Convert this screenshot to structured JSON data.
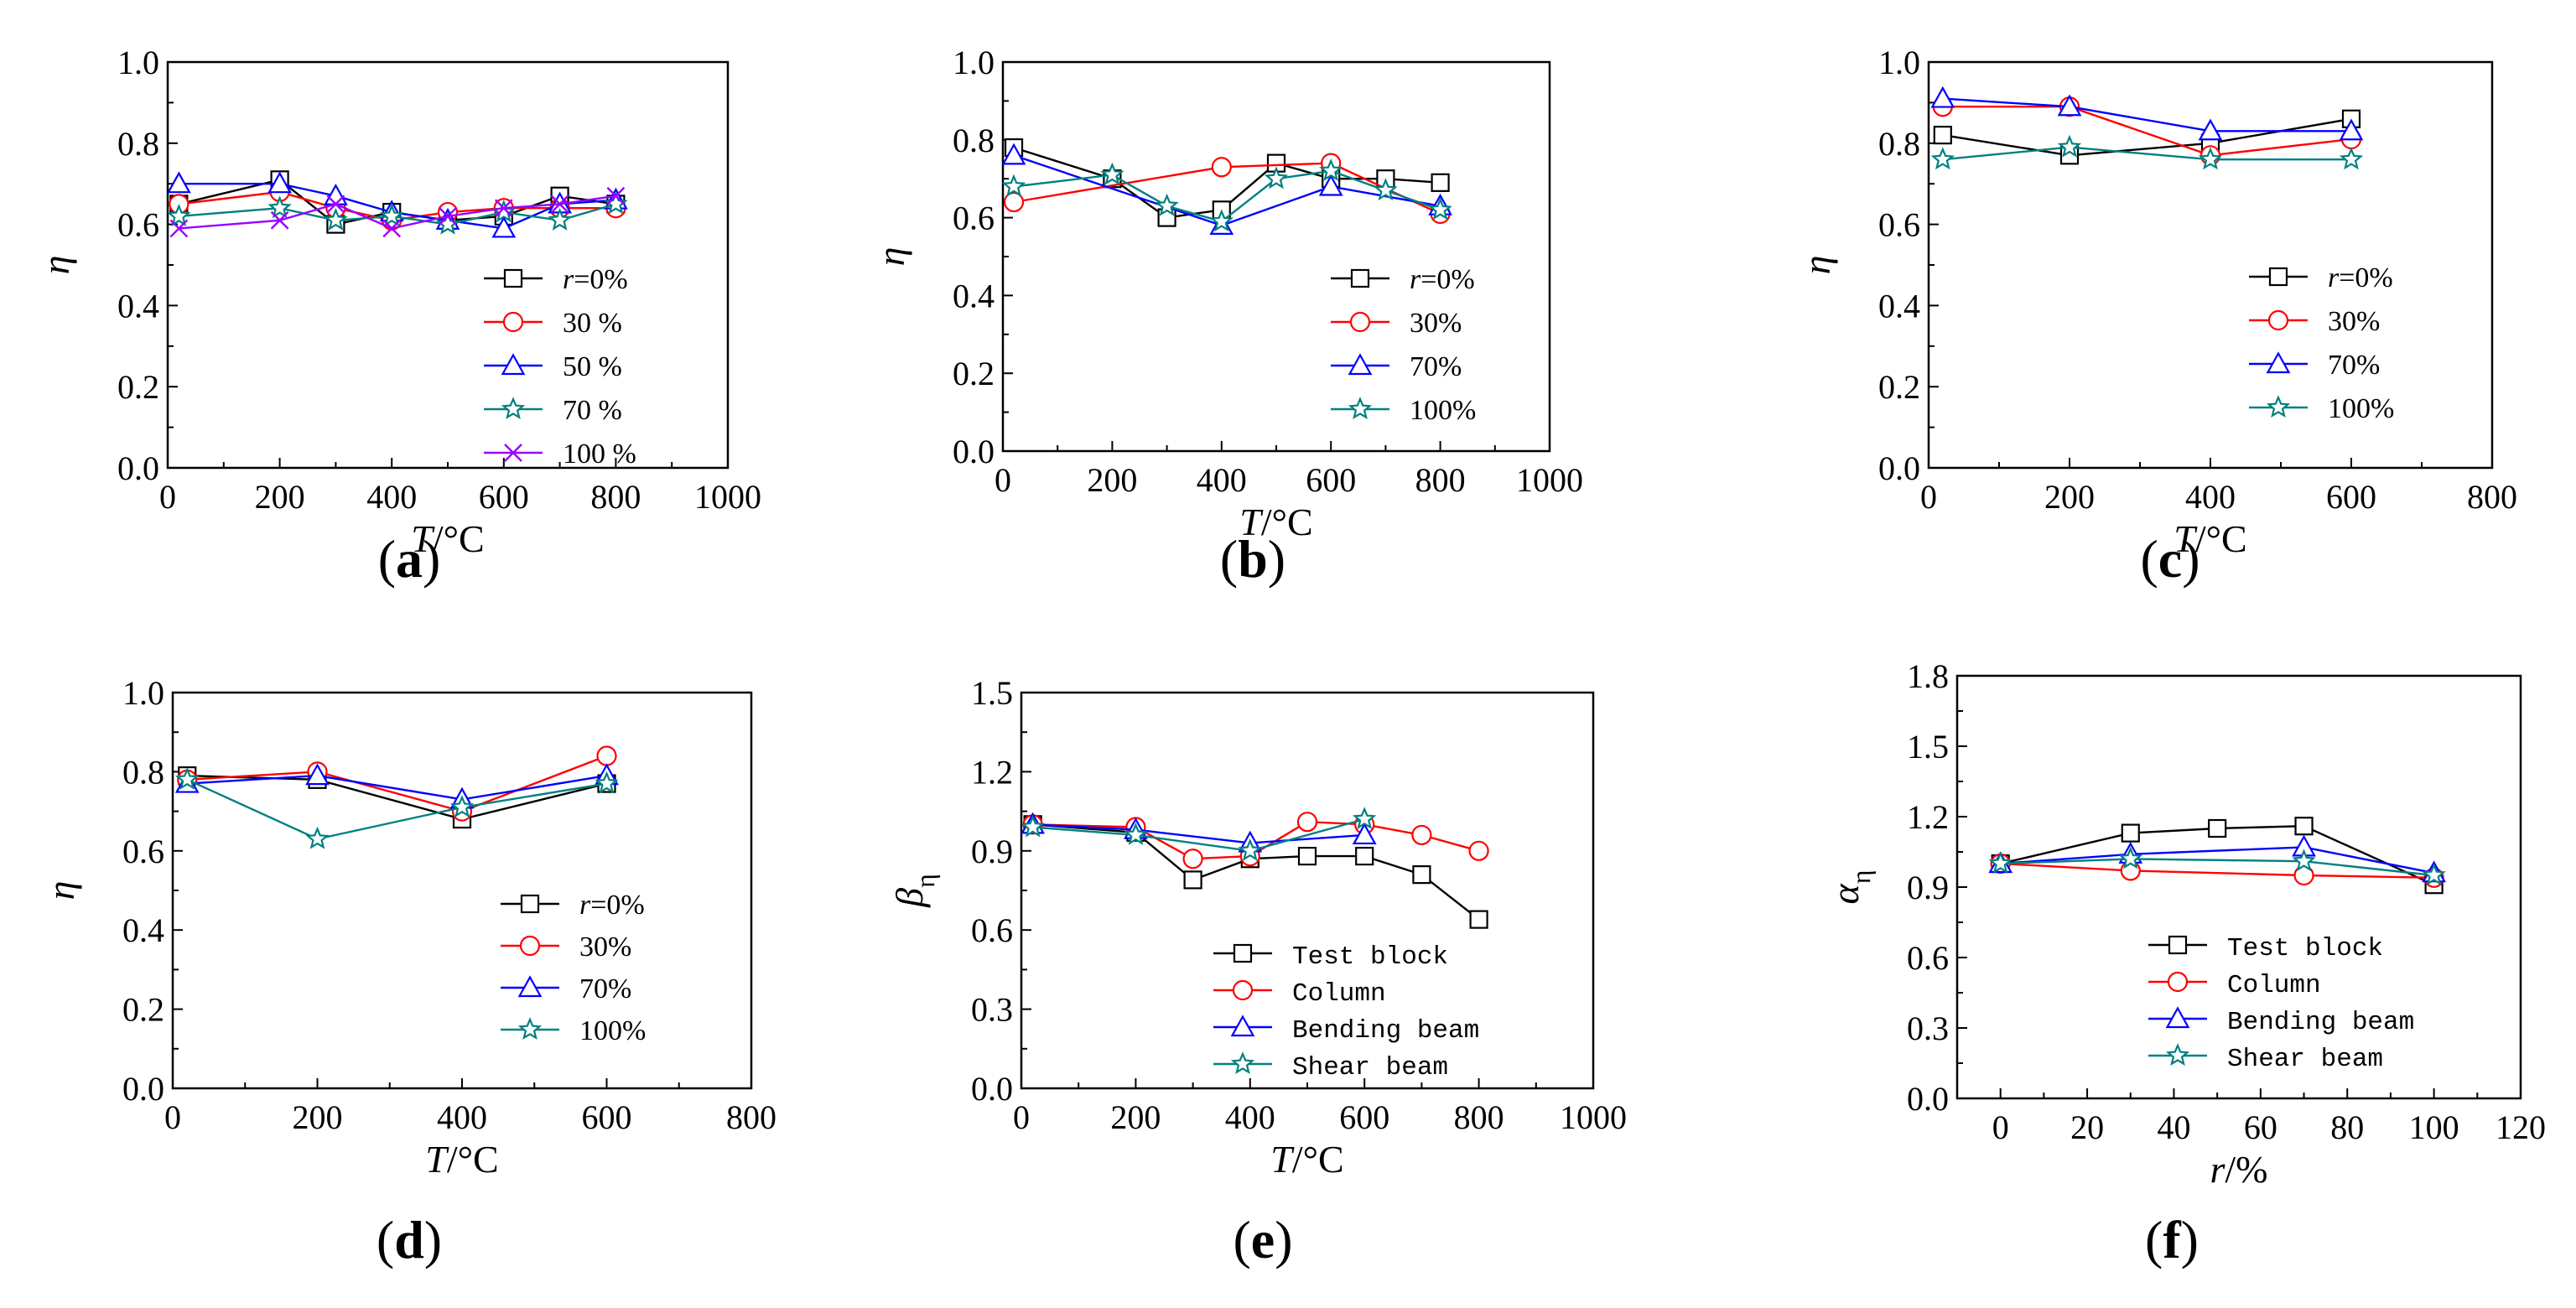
{
  "colors": {
    "black": "#000000",
    "red": "#ff0000",
    "blue": "#0000ff",
    "teal": "#008080",
    "purple": "#9900ff"
  },
  "chart_data": [
    {
      "type": "line",
      "panel_label": "a",
      "xlabel": "T",
      "xlabel_unit": "/°C",
      "ylabel": "η",
      "xlim": [
        0,
        1000
      ],
      "ylim": [
        0,
        1.0
      ],
      "xticks": [
        "0",
        "200",
        "400",
        "600",
        "800",
        "1000"
      ],
      "yticks": [
        "0.0",
        "0.2",
        "0.4",
        "0.6",
        "0.8",
        "1.0"
      ],
      "legend_position": "bottom-right",
      "grid": false,
      "x": [
        20,
        200,
        300,
        400,
        500,
        600,
        700,
        800
      ],
      "series": [
        {
          "name": "r=0%",
          "name_italic": "r",
          "name_rest": "=0%",
          "marker": "square",
          "color": "#000000",
          "values": [
            0.65,
            0.71,
            0.6,
            0.63,
            0.61,
            0.62,
            0.67,
            0.65
          ]
        },
        {
          "name": "30 %",
          "marker": "circle",
          "color": "#ff0000",
          "values": [
            0.65,
            0.68,
            0.64,
            0.61,
            0.63,
            0.64,
            0.64,
            0.64
          ]
        },
        {
          "name": "50 %",
          "marker": "triangle",
          "color": "#0000ff",
          "values": [
            0.7,
            0.7,
            0.67,
            0.63,
            0.61,
            0.59,
            0.65,
            0.66
          ]
        },
        {
          "name": "70 %",
          "marker": "star",
          "color": "#008080",
          "values": [
            0.62,
            0.64,
            0.61,
            0.62,
            0.6,
            0.63,
            0.61,
            0.65
          ]
        },
        {
          "name": "100 %",
          "marker": "x",
          "color": "#9900ff",
          "values": [
            0.59,
            0.61,
            0.65,
            0.59,
            0.62,
            0.64,
            0.65,
            0.67
          ]
        }
      ]
    },
    {
      "type": "line",
      "panel_label": "b",
      "xlabel": "T",
      "xlabel_unit": "/°C",
      "ylabel": "η",
      "xlim": [
        0,
        1000
      ],
      "ylim": [
        0,
        1.0
      ],
      "xticks": [
        "0",
        "200",
        "400",
        "600",
        "800",
        "1000"
      ],
      "yticks": [
        "0.0",
        "0.2",
        "0.4",
        "0.6",
        "0.8",
        "1.0"
      ],
      "legend_position": "bottom-right",
      "grid": false,
      "x": [
        20,
        200,
        300,
        400,
        500,
        600,
        700,
        800
      ],
      "series": [
        {
          "name": "r=0%",
          "name_italic": "r",
          "name_rest": "=0%",
          "marker": "square",
          "color": "#000000",
          "values": [
            0.78,
            0.7,
            0.6,
            0.62,
            0.74,
            0.7,
            0.7,
            0.69
          ]
        },
        {
          "name": "30%",
          "marker": "circle",
          "color": "#ff0000",
          "values": [
            0.64,
            null,
            null,
            0.73,
            null,
            0.74,
            null,
            0.61
          ]
        },
        {
          "name": "70%",
          "marker": "triangle",
          "color": "#0000ff",
          "values": [
            0.76,
            null,
            null,
            0.58,
            null,
            0.68,
            null,
            0.63
          ]
        },
        {
          "name": "100%",
          "marker": "star",
          "color": "#008080",
          "values": [
            0.68,
            0.71,
            0.63,
            0.59,
            0.7,
            0.72,
            0.67,
            0.62
          ]
        }
      ]
    },
    {
      "type": "line",
      "panel_label": "c",
      "xlabel": "T",
      "xlabel_unit": "/°C",
      "ylabel": "η",
      "xlim": [
        0,
        800
      ],
      "ylim": [
        0,
        1.0
      ],
      "xticks": [
        "0",
        "200",
        "400",
        "600",
        "800"
      ],
      "yticks": [
        "0.0",
        "0.2",
        "0.4",
        "0.6",
        "0.8",
        "1.0"
      ],
      "legend_position": "bottom-right",
      "grid": false,
      "x": [
        20,
        200,
        400,
        600
      ],
      "series": [
        {
          "name": "r=0%",
          "name_italic": "r",
          "name_rest": "=0%",
          "marker": "square",
          "color": "#000000",
          "values": [
            0.82,
            0.77,
            0.8,
            0.86
          ]
        },
        {
          "name": "30%",
          "marker": "circle",
          "color": "#ff0000",
          "values": [
            0.89,
            0.89,
            0.77,
            0.81
          ]
        },
        {
          "name": "70%",
          "marker": "triangle",
          "color": "#0000ff",
          "values": [
            0.91,
            0.89,
            0.83,
            0.83
          ]
        },
        {
          "name": "100%",
          "marker": "star",
          "color": "#008080",
          "values": [
            0.76,
            0.79,
            0.76,
            0.76
          ]
        }
      ]
    },
    {
      "type": "line",
      "panel_label": "d",
      "xlabel": "T",
      "xlabel_unit": "/°C",
      "ylabel": "η",
      "xlim": [
        0,
        800
      ],
      "ylim": [
        0,
        1.0
      ],
      "xticks": [
        "0",
        "200",
        "400",
        "600",
        "800"
      ],
      "yticks": [
        "0.0",
        "0.2",
        "0.4",
        "0.6",
        "0.8",
        "1.0"
      ],
      "legend_position": "bottom-right",
      "grid": false,
      "x": [
        20,
        200,
        400,
        600
      ],
      "series": [
        {
          "name": "r=0%",
          "name_italic": "r",
          "name_rest": "=0%",
          "marker": "square",
          "color": "#000000",
          "values": [
            0.79,
            0.78,
            0.68,
            0.77
          ]
        },
        {
          "name": "30%",
          "marker": "circle",
          "color": "#ff0000",
          "values": [
            0.78,
            0.8,
            0.7,
            0.84
          ]
        },
        {
          "name": "70%",
          "marker": "triangle",
          "color": "#0000ff",
          "values": [
            0.77,
            0.79,
            0.73,
            0.79
          ]
        },
        {
          "name": "100%",
          "marker": "star",
          "color": "#008080",
          "values": [
            0.78,
            0.63,
            0.71,
            0.77
          ]
        }
      ]
    },
    {
      "type": "line",
      "panel_label": "e",
      "xlabel": "T",
      "xlabel_unit": "/°C",
      "ylabel": "β",
      "ylabel_sub": "η",
      "xlim": [
        0,
        1000
      ],
      "ylim": [
        0,
        1.5
      ],
      "xticks": [
        "0",
        "200",
        "400",
        "600",
        "800",
        "1000"
      ],
      "yticks": [
        "0.0",
        "0.3",
        "0.6",
        "0.9",
        "1.2",
        "1.5"
      ],
      "legend_position": "bottom-right",
      "grid": false,
      "series": [
        {
          "name": "Test block",
          "marker": "square",
          "color": "#000000",
          "x": [
            20,
            200,
            300,
            400,
            500,
            600,
            700,
            800
          ],
          "values": [
            1.0,
            0.97,
            0.79,
            0.87,
            0.88,
            0.88,
            0.81,
            0.64
          ]
        },
        {
          "name": "Column",
          "marker": "circle",
          "color": "#ff0000",
          "x": [
            20,
            200,
            300,
            400,
            500,
            600,
            700,
            800
          ],
          "values": [
            1.0,
            0.99,
            0.87,
            0.88,
            1.01,
            1.0,
            0.96,
            0.9
          ]
        },
        {
          "name": "Bending beam",
          "marker": "triangle",
          "color": "#0000ff",
          "x": [
            20,
            200,
            400,
            600
          ],
          "values": [
            1.0,
            0.98,
            0.93,
            0.96
          ]
        },
        {
          "name": "Shear beam",
          "marker": "star",
          "color": "#008080",
          "x": [
            20,
            200,
            400,
            600
          ],
          "values": [
            0.99,
            0.96,
            0.9,
            1.02
          ]
        }
      ]
    },
    {
      "type": "line",
      "panel_label": "f",
      "xlabel": "r",
      "xlabel_unit": "/%",
      "ylabel": "α",
      "ylabel_sub": "η",
      "xlim": [
        -10,
        120
      ],
      "ylim": [
        0,
        1.8
      ],
      "xticks": [
        "0",
        "20",
        "40",
        "60",
        "80",
        "100",
        "120"
      ],
      "yticks": [
        "0.0",
        "0.3",
        "0.6",
        "0.9",
        "1.2",
        "1.5",
        "1.8"
      ],
      "legend_position": "bottom-right",
      "grid": false,
      "series": [
        {
          "name": "Test block",
          "marker": "square",
          "color": "#000000",
          "x": [
            0,
            30,
            50,
            70,
            100
          ],
          "values": [
            1.0,
            1.13,
            1.15,
            1.16,
            0.91
          ]
        },
        {
          "name": "Column",
          "marker": "circle",
          "color": "#ff0000",
          "x": [
            0,
            30,
            70,
            100
          ],
          "values": [
            1.0,
            0.97,
            0.95,
            0.94
          ]
        },
        {
          "name": "Bending beam",
          "marker": "triangle",
          "color": "#0000ff",
          "x": [
            0,
            30,
            70,
            100
          ],
          "values": [
            1.0,
            1.04,
            1.07,
            0.96
          ]
        },
        {
          "name": "Shear beam",
          "marker": "star",
          "color": "#008080",
          "x": [
            0,
            30,
            70,
            100
          ],
          "values": [
            1.0,
            1.02,
            1.01,
            0.95
          ]
        }
      ]
    }
  ]
}
